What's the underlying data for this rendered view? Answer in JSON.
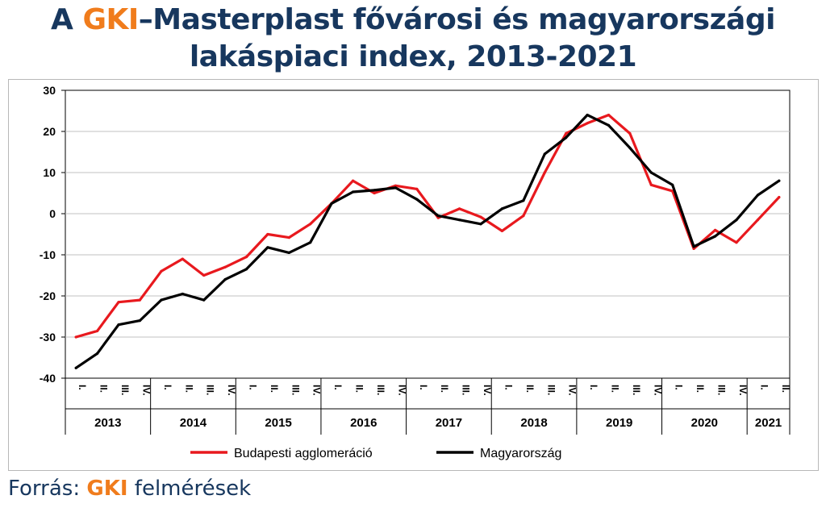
{
  "title": {
    "prefix": "A ",
    "brand": "GKI",
    "rest_line1": "–Masterplast fővárosi és magyarországi",
    "line2": "lakáspiaci index, 2013-2021"
  },
  "source": {
    "prefix": "Forrás: ",
    "brand": "GKI",
    "suffix": " felmérések"
  },
  "colors": {
    "accent": "#f07c1c",
    "title": "#17375e",
    "series_red": "#e8191e",
    "series_black": "#000000"
  },
  "chart_data": {
    "type": "line",
    "ylim": [
      -40,
      30
    ],
    "yticks": [
      30,
      20,
      10,
      0,
      -10,
      -20,
      -30,
      -40
    ],
    "grid": true,
    "legend_position": "bottom",
    "years": [
      "2013",
      "2014",
      "2015",
      "2016",
      "2017",
      "2018",
      "2019",
      "2020",
      "2021"
    ],
    "quarters_per_year": [
      4,
      4,
      4,
      4,
      4,
      4,
      4,
      4,
      2
    ],
    "quarter_labels": [
      "I.",
      "II.",
      "III.",
      "IV."
    ],
    "series": [
      {
        "name": "Budapesti agglomeráció",
        "color": "#e8191e",
        "values": [
          -30,
          -28.5,
          -21.5,
          -21,
          -14,
          -11,
          -15,
          -13,
          -10.5,
          -5,
          -5.8,
          -2.5,
          2.5,
          8,
          5,
          6.8,
          6,
          -1,
          1.2,
          -0.8,
          -4.2,
          -0.5,
          10,
          19.5,
          22,
          24,
          19.5,
          7,
          5.5,
          -8.5,
          -4,
          -7,
          -1.5,
          4
        ]
      },
      {
        "name": "Magyarország",
        "color": "#000000",
        "values": [
          -37.5,
          -34,
          -27,
          -26,
          -21,
          -19.5,
          -21,
          -16,
          -13.5,
          -8.2,
          -9.5,
          -7,
          2.5,
          5.3,
          5.7,
          6.3,
          3.5,
          -0.5,
          -1.5,
          -2.5,
          1.2,
          3.2,
          14.5,
          18.5,
          24,
          21.5,
          16,
          10,
          7,
          -8,
          -5.5,
          -1.5,
          4.5,
          8
        ]
      }
    ]
  }
}
